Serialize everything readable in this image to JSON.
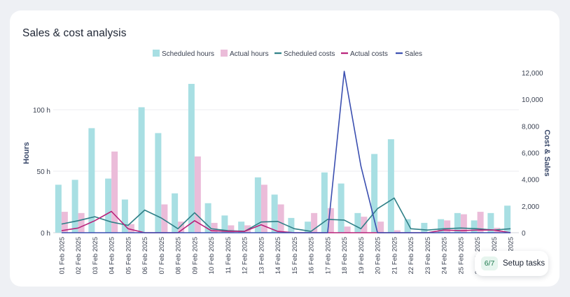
{
  "title": "Sales & cost analysis",
  "setup": {
    "progress": "6/7",
    "label": "Setup tasks"
  },
  "colors": {
    "scheduled_hours": "#a8dfe3",
    "actual_hours": "#ebbcd9",
    "scheduled_costs": "#2e7f86",
    "actual_costs": "#b8227a",
    "sales": "#3b4fb0"
  },
  "chart_data": {
    "type": "bar",
    "title": "Sales & cost analysis",
    "legend_position": "top-center",
    "grid": true,
    "categories": [
      "01 Feb 2025",
      "02 Feb 2025",
      "03 Feb 2025",
      "04 Feb 2025",
      "05 Feb 2025",
      "06 Feb 2025",
      "07 Feb 2025",
      "08 Feb 2025",
      "09 Feb 2025",
      "10 Feb 2025",
      "11 Feb 2025",
      "12 Feb 2025",
      "13 Feb 2025",
      "14 Feb 2025",
      "15 Feb 2025",
      "16 Feb 2025",
      "17 Feb 2025",
      "18 Feb 2025",
      "19 Feb 2025",
      "20 Feb 2025",
      "21 Feb 2025",
      "22 Feb 2025",
      "23 Feb 2025",
      "24 Feb 2025",
      "25 Feb 2025",
      "26 Feb 2025",
      "27 Feb 2025",
      "28 Feb 2025"
    ],
    "y_left": {
      "label": "Hours",
      "ticks": [
        "0 h",
        "50 h",
        "100 h"
      ],
      "range": [
        0,
        130
      ]
    },
    "y_right": {
      "label": "Cost & Sales",
      "ticks": [
        "0",
        "2,000",
        "4,000",
        "6,000",
        "8,000",
        "10,000",
        "12,000"
      ],
      "range": [
        0,
        12000
      ]
    },
    "series": [
      {
        "name": "Scheduled hours",
        "type": "bar",
        "axis": "left",
        "values": [
          39,
          43,
          85,
          44,
          27,
          102,
          81,
          32,
          121,
          24,
          14,
          9,
          45,
          31,
          12,
          9,
          49,
          40,
          16,
          64,
          76,
          11,
          8,
          11,
          16,
          10,
          16,
          22
        ]
      },
      {
        "name": "Actual hours",
        "type": "bar",
        "axis": "left",
        "values": [
          17,
          16,
          0,
          66,
          7,
          0,
          23,
          9,
          62,
          8,
          6,
          6,
          39,
          23,
          0,
          16,
          20,
          5,
          13,
          9,
          2,
          0,
          0,
          10,
          15,
          17,
          4,
          0
        ]
      },
      {
        "name": "Scheduled costs",
        "type": "line",
        "axis": "right",
        "values": [
          650,
          900,
          1200,
          800,
          550,
          1700,
          1100,
          300,
          1500,
          300,
          150,
          100,
          800,
          850,
          300,
          100,
          1000,
          950,
          300,
          1800,
          2600,
          300,
          200,
          300,
          350,
          300,
          200,
          300
        ]
      },
      {
        "name": "Actual costs",
        "type": "line",
        "axis": "right",
        "values": [
          150,
          350,
          900,
          1600,
          300,
          0,
          0,
          0,
          900,
          150,
          100,
          100,
          600,
          100,
          0,
          0,
          0,
          0,
          0,
          0,
          0,
          0,
          0,
          200,
          150,
          200,
          200,
          0
        ]
      },
      {
        "name": "Sales",
        "type": "line",
        "axis": "right",
        "values": [
          0,
          0,
          0,
          0,
          0,
          0,
          0,
          0,
          0,
          0,
          0,
          0,
          0,
          0,
          0,
          0,
          0,
          12100,
          5000,
          0,
          0,
          0,
          0,
          0,
          0,
          0,
          0,
          0
        ]
      }
    ]
  }
}
